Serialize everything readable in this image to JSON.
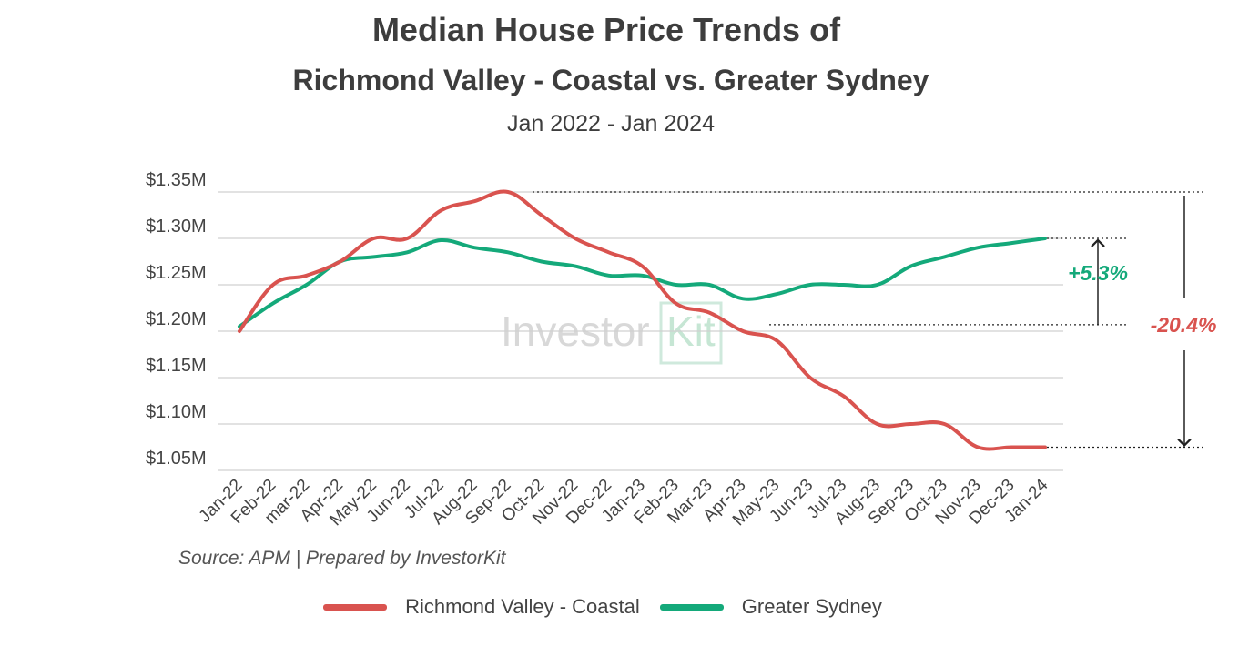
{
  "title": "Median House Price Trends of",
  "subtitle": "Richmond Valley - Coastal vs. Greater Sydney",
  "period": "Jan 2022 - Jan 2024",
  "source": "Source: APM | Prepared by InvestorKit",
  "watermark": {
    "text_main": "Investor",
    "text_kit": "Kit"
  },
  "colors": {
    "richmond": "#d9534f",
    "sydney": "#14a97a",
    "grid": "#d0d0d0",
    "text": "#444444"
  },
  "annotations": {
    "sydney_change": "+5.3%",
    "richmond_change": "-20.4%"
  },
  "chart_data": {
    "type": "line",
    "title": "Median House Price Trends of Richmond Valley - Coastal vs. Greater Sydney",
    "subtitle": "Jan 2022 - Jan 2024",
    "xlabel": "",
    "ylabel": "",
    "ylim": [
      1.05,
      1.35
    ],
    "yticks": [
      1.05,
      1.1,
      1.15,
      1.2,
      1.25,
      1.3,
      1.35
    ],
    "ytick_labels": [
      "$1.05M",
      "$1.10M",
      "$1.15M",
      "$1.20M",
      "$1.25M",
      "$1.30M",
      "$1.35M"
    ],
    "grid": true,
    "legend_position": "bottom",
    "categories": [
      "Jan-22",
      "Feb-22",
      "mar-22",
      "Apr-22",
      "May-22",
      "Jun-22",
      "Jul-22",
      "Aug-22",
      "Sep-22",
      "Oct-22",
      "Nov-22",
      "Dec-22",
      "Jan-23",
      "Feb-23",
      "Mar-23",
      "Apr-23",
      "May-23",
      "Jun-23",
      "Jul-23",
      "Aug-23",
      "Sep-23",
      "Oct-23",
      "Nov-23",
      "Dec-23",
      "Jan-24"
    ],
    "series": [
      {
        "name": "Richmond Valley - Coastal",
        "values": [
          1.2,
          1.25,
          1.26,
          1.275,
          1.3,
          1.3,
          1.33,
          1.34,
          1.35,
          1.325,
          1.3,
          1.285,
          1.27,
          1.23,
          1.22,
          1.2,
          1.19,
          1.15,
          1.13,
          1.1,
          1.1,
          1.1,
          1.075,
          1.075,
          1.075
        ]
      },
      {
        "name": "Greater Sydney",
        "values": [
          1.205,
          1.23,
          1.25,
          1.275,
          1.28,
          1.285,
          1.298,
          1.29,
          1.285,
          1.275,
          1.27,
          1.26,
          1.26,
          1.25,
          1.25,
          1.235,
          1.24,
          1.25,
          1.25,
          1.25,
          1.27,
          1.28,
          1.29,
          1.295,
          1.3
        ]
      }
    ]
  }
}
